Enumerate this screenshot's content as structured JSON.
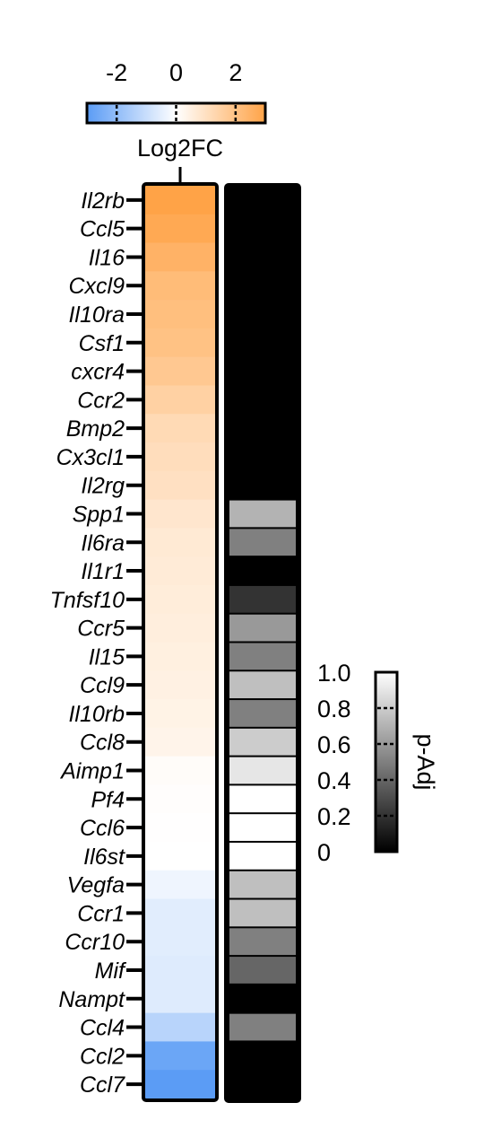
{
  "chart_data": {
    "type": "heatmap",
    "genes": [
      "Il2rb",
      "Ccl5",
      "Il16",
      "Cxcl9",
      "Il10ra",
      "Csf1",
      "cxcr4",
      "Ccr2",
      "Bmp2",
      "Cx3cl1",
      "Il2rg",
      "Spp1",
      "Il6ra",
      "Il1r1",
      "Tnfsf10",
      "Ccr5",
      "Il15",
      "Ccl9",
      "Il10rb",
      "Ccl8",
      "Aimp1",
      "Pf4",
      "Ccl6",
      "Il6st",
      "Vegfa",
      "Ccr1",
      "Ccr10",
      "Mif",
      "Nampt",
      "Ccl4",
      "Ccl2",
      "Ccl7"
    ],
    "log2fc": [
      3.0,
      2.8,
      2.5,
      2.2,
      2.1,
      2.0,
      1.8,
      1.5,
      1.2,
      1.1,
      1.0,
      0.8,
      0.7,
      0.65,
      0.6,
      0.55,
      0.5,
      0.45,
      0.4,
      0.35,
      0.1,
      0.05,
      0.02,
      0.0,
      -0.3,
      -0.55,
      -0.55,
      -0.6,
      -0.6,
      -1.3,
      -2.7,
      -3.0
    ],
    "padj": [
      0,
      0,
      0,
      0,
      0,
      0,
      0,
      0,
      0,
      0,
      0,
      0.7,
      0.5,
      0,
      0.2,
      0.6,
      0.5,
      0.75,
      0.5,
      0.8,
      0.9,
      1.0,
      1.0,
      1.0,
      0.75,
      0.75,
      0.5,
      0.4,
      0,
      0.5,
      0,
      0
    ],
    "log2fc_colorbar": {
      "title": "Log2FC",
      "ticks": [
        "-2",
        "0",
        "2"
      ],
      "tick_values": [
        -2,
        0,
        2
      ],
      "range": [
        -3,
        3
      ],
      "low_color": "#5b9cf5",
      "mid_color": "#ffffff",
      "high_color": "#ffa347"
    },
    "padj_colorbar": {
      "title": "p-Adj",
      "ticks": [
        "1.0",
        "0.8",
        "0.6",
        "0.4",
        "0.2",
        "0"
      ],
      "tick_values": [
        1.0,
        0.8,
        0.6,
        0.4,
        0.2,
        0
      ],
      "range": [
        0,
        1
      ],
      "low_color": "#000000",
      "high_color": "#ffffff"
    }
  }
}
